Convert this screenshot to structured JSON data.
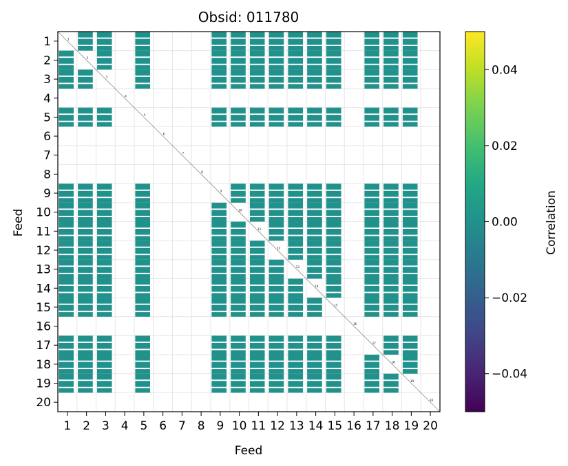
{
  "chart_data": {
    "type": "heatmap",
    "title": "Obsid: 011780",
    "xlabel": "Feed",
    "ylabel": "Feed",
    "x_ticks": [
      "1",
      "2",
      "3",
      "4",
      "5",
      "6",
      "7",
      "8",
      "9",
      "10",
      "11",
      "12",
      "13",
      "14",
      "15",
      "16",
      "17",
      "18",
      "19",
      "20"
    ],
    "y_ticks": [
      "1",
      "2",
      "3",
      "4",
      "5",
      "6",
      "7",
      "8",
      "9",
      "10",
      "11",
      "12",
      "13",
      "14",
      "15",
      "16",
      "17",
      "18",
      "19",
      "20"
    ],
    "colorbar": {
      "label": "Correlation",
      "vmin": -0.05,
      "vmax": 0.05,
      "ticks": [
        0.04,
        0.02,
        0.0,
        -0.02,
        -0.04
      ],
      "tick_labels": [
        "0.04",
        "0.02",
        "0.00",
        "−0.02",
        "−0.04"
      ],
      "colormap": "viridis"
    },
    "active_feeds": [
      1,
      2,
      3,
      5,
      9,
      10,
      11,
      12,
      13,
      14,
      15,
      17,
      18,
      19
    ],
    "inactive_feeds": [
      4,
      6,
      7,
      8,
      16,
      20
    ],
    "cell_value": 0.0,
    "cell_color": "#21918c",
    "diagonal_feed_labels": [
      "1",
      "2",
      "3",
      "4",
      "5",
      "6",
      "7",
      "8",
      "9",
      "10",
      "11",
      "12",
      "13",
      "14",
      "15",
      "16",
      "17",
      "18",
      "19",
      "20"
    ],
    "grid": true
  }
}
